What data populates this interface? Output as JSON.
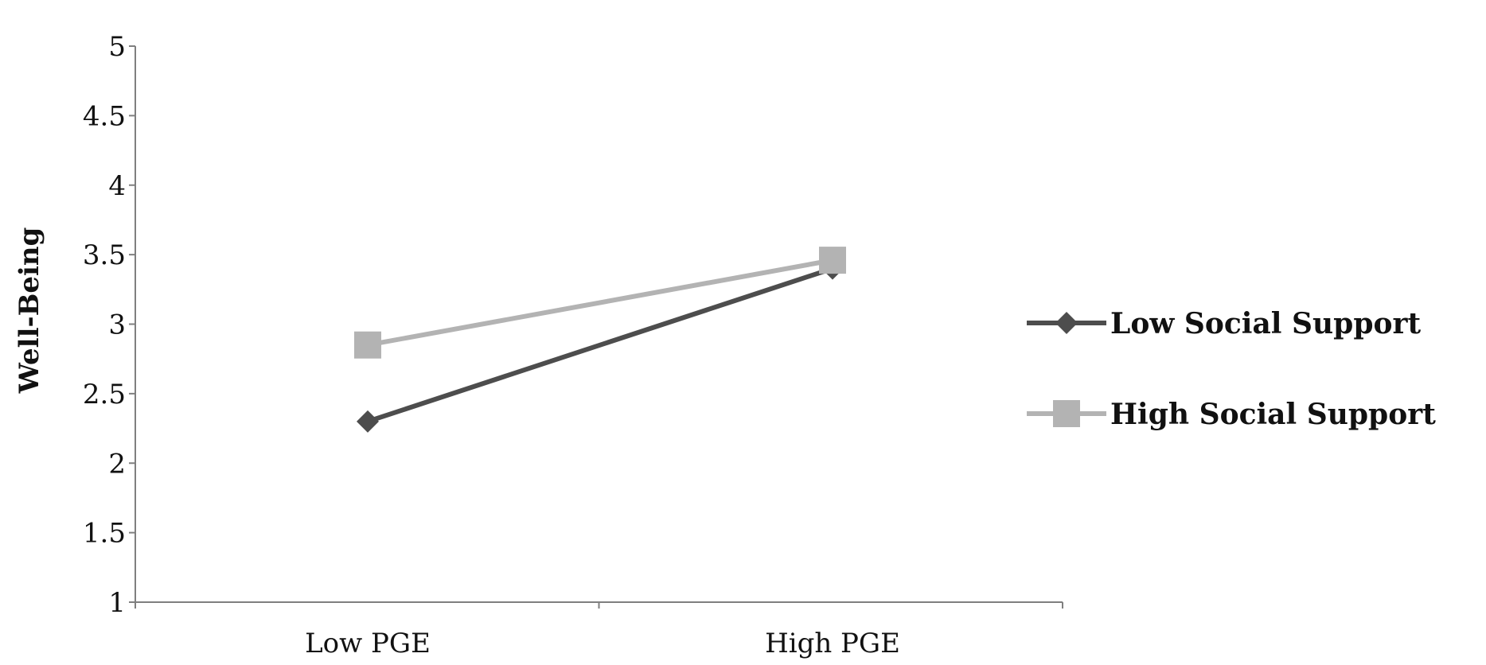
{
  "chart_data": {
    "type": "line",
    "title": "",
    "xlabel": "",
    "ylabel": "Well-Being",
    "categories": [
      "Low PGE",
      "High PGE"
    ],
    "ylim": [
      1,
      5
    ],
    "yticks": [
      "1",
      "1.5",
      "2",
      "2.5",
      "3",
      "3.5",
      "4",
      "4.5",
      "5"
    ],
    "grid": false,
    "legend_position": "right",
    "series": [
      {
        "name": "Low Social Support",
        "values": [
          2.3,
          3.4
        ],
        "color": "#4d4d4d",
        "marker": "diamond"
      },
      {
        "name": "High Social Support",
        "values": [
          2.85,
          3.46
        ],
        "color": "#b3b3b3",
        "marker": "square"
      }
    ]
  }
}
